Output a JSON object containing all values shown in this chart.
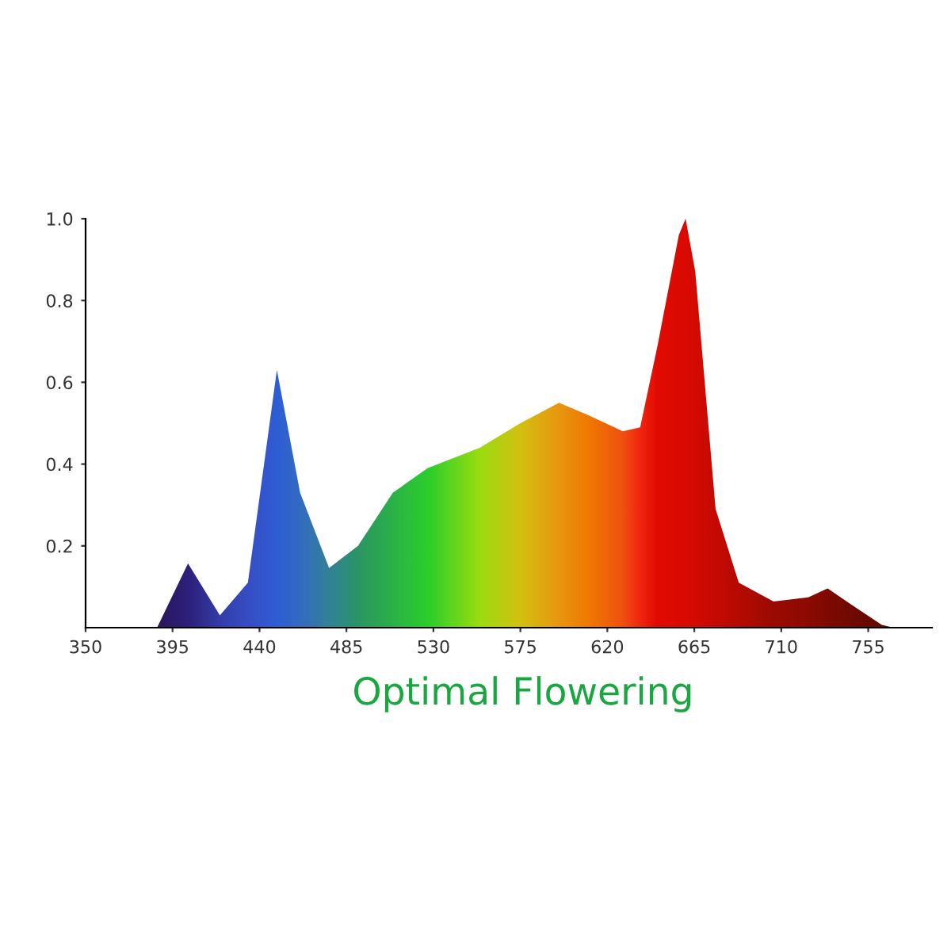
{
  "chart_data": {
    "type": "area",
    "x": [
      387,
      403,
      419.5,
      434,
      449,
      461,
      476,
      491,
      509,
      527,
      554,
      575,
      595,
      610,
      628,
      637,
      646,
      657,
      660.5,
      665.5,
      676,
      688,
      706,
      724,
      734,
      746,
      762,
      768
    ],
    "values": [
      0,
      0.157,
      0.03,
      0.11,
      0.63,
      0.33,
      0.146,
      0.2,
      0.33,
      0.39,
      0.44,
      0.5,
      0.55,
      0.52,
      0.48,
      0.49,
      0.69,
      0.96,
      1.0,
      0.87,
      0.29,
      0.11,
      0.064,
      0.074,
      0.096,
      0.057,
      0.007,
      0
    ],
    "colors": [
      "#10106a",
      "#141a8c",
      "#1a3cc0",
      "#1f4ee0",
      "#1560f0",
      "#1a70d8",
      "#188aa8",
      "#10a070",
      "#10c050",
      "#10e030",
      "#90f010",
      "#d0d010",
      "#e8a010",
      "#f08000",
      "#f05010",
      "#f02010",
      "#e00000",
      "#d80000",
      "#d80000",
      "#d00000",
      "#c00000",
      "#b00000",
      "#900000",
      "#800000",
      "#700000",
      "#600000",
      "#500000",
      "#400000"
    ],
    "xlim": [
      350,
      788
    ],
    "ylim": [
      0,
      1.0
    ],
    "xticks": [
      350,
      395,
      440,
      485,
      530,
      575,
      620,
      665,
      710,
      755
    ],
    "yticks": [
      {
        "value": 0.2,
        "label": "0.2"
      },
      {
        "value": 0.4,
        "label": "0.4"
      },
      {
        "value": 0.6,
        "label": "0.6"
      },
      {
        "value": 0.8,
        "label": "0.8"
      },
      {
        "value": 1.0,
        "label": "1.0"
      }
    ],
    "grid": false,
    "legend": false,
    "annotations": [
      "Optimal Flowering"
    ]
  }
}
